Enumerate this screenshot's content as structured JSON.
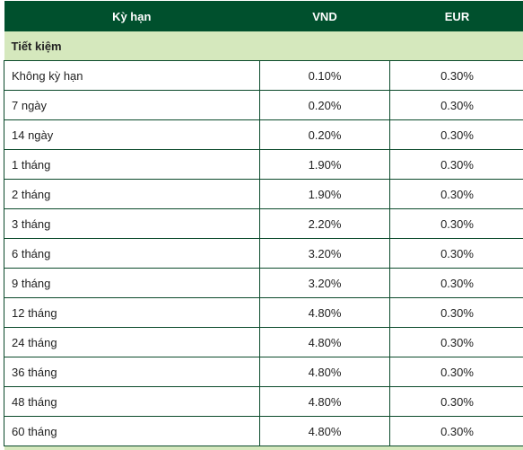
{
  "header": {
    "term_label": "Kỳ hạn",
    "vnd_label": "VND",
    "eur_label": "EUR"
  },
  "section": {
    "title": "Tiết kiệm"
  },
  "rows": [
    {
      "term": "Không kỳ hạn",
      "vnd": "0.10%",
      "eur": "0.30%"
    },
    {
      "term": "7 ngày",
      "vnd": "0.20%",
      "eur": "0.30%"
    },
    {
      "term": "14 ngày",
      "vnd": "0.20%",
      "eur": "0.30%"
    },
    {
      "term": "1 tháng",
      "vnd": "1.90%",
      "eur": "0.30%"
    },
    {
      "term": "2 tháng",
      "vnd": "1.90%",
      "eur": "0.30%"
    },
    {
      "term": "3 tháng",
      "vnd": "2.20%",
      "eur": "0.30%"
    },
    {
      "term": "6 tháng",
      "vnd": "3.20%",
      "eur": "0.30%"
    },
    {
      "term": "9 tháng",
      "vnd": "3.20%",
      "eur": "0.30%"
    },
    {
      "term": "12 tháng",
      "vnd": "4.80%",
      "eur": "0.30%"
    },
    {
      "term": "24 tháng",
      "vnd": "4.80%",
      "eur": "0.30%"
    },
    {
      "term": "36 tháng",
      "vnd": "4.80%",
      "eur": "0.30%"
    },
    {
      "term": "48 tháng",
      "vnd": "4.80%",
      "eur": "0.30%"
    },
    {
      "term": "60 tháng",
      "vnd": "4.80%",
      "eur": "0.30%"
    }
  ],
  "colors": {
    "header_bg": "#00502d",
    "header_text": "#ffffff",
    "section_bg": "#d5e8bd",
    "border": "#0b4a2b"
  }
}
